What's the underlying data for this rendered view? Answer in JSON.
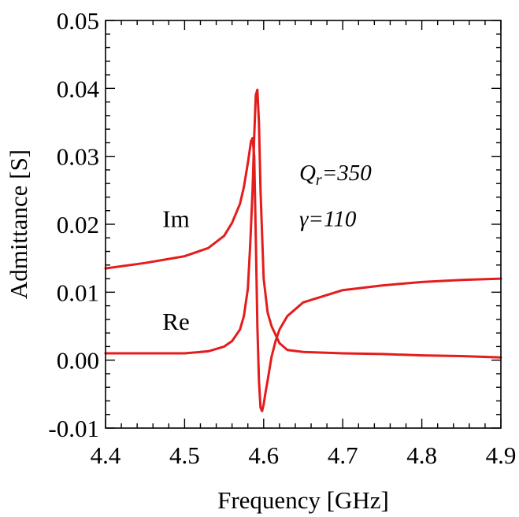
{
  "chart_data": {
    "type": "line",
    "xlabel": "Frequency [GHz]",
    "ylabel": "Admittance [S]",
    "xlim": [
      4.4,
      4.9
    ],
    "ylim": [
      -0.01,
      0.05
    ],
    "xticks": [
      "4.4",
      "4.5",
      "4.6",
      "4.7",
      "4.8",
      "4.9"
    ],
    "yticks": [
      "-0.01",
      "0.00",
      "0.01",
      "0.02",
      "0.03",
      "0.04",
      "0.05"
    ],
    "grid": false,
    "line_color": "#e41c1c",
    "series": [
      {
        "name": "Im",
        "label": "Im",
        "x": [
          4.4,
          4.45,
          4.5,
          4.53,
          4.55,
          4.56,
          4.57,
          4.575,
          4.58,
          4.584,
          4.586,
          4.588,
          4.59,
          4.592,
          4.594,
          4.596,
          4.598,
          4.6,
          4.602,
          4.605,
          4.61,
          4.615,
          4.62,
          4.63,
          4.65,
          4.7,
          4.75,
          4.8,
          4.85,
          4.9
        ],
        "y": [
          0.0135,
          0.0143,
          0.0153,
          0.0165,
          0.0183,
          0.0202,
          0.023,
          0.0255,
          0.029,
          0.0322,
          0.0327,
          0.03,
          0.018,
          0.005,
          -0.003,
          -0.007,
          -0.0075,
          -0.0065,
          -0.005,
          -0.003,
          0.0005,
          0.0028,
          0.0045,
          0.0065,
          0.0085,
          0.0103,
          0.011,
          0.0115,
          0.0118,
          0.012
        ]
      },
      {
        "name": "Re",
        "label": "Re",
        "x": [
          4.4,
          4.45,
          4.5,
          4.53,
          4.55,
          4.56,
          4.57,
          4.575,
          4.58,
          4.583,
          4.586,
          4.588,
          4.59,
          4.592,
          4.594,
          4.596,
          4.6,
          4.605,
          4.61,
          4.62,
          4.63,
          4.65,
          4.7,
          4.75,
          4.8,
          4.85,
          4.9
        ],
        "y": [
          0.001,
          0.001,
          0.001,
          0.0013,
          0.002,
          0.0028,
          0.0045,
          0.0065,
          0.0105,
          0.017,
          0.025,
          0.033,
          0.039,
          0.0398,
          0.035,
          0.025,
          0.012,
          0.007,
          0.005,
          0.0025,
          0.0015,
          0.0012,
          0.001,
          0.0009,
          0.0007,
          0.0006,
          0.0004
        ]
      }
    ],
    "annotations": [
      {
        "main": "Q",
        "sub": "r",
        "text": "=350",
        "x": 4.645,
        "y": 0.0265
      },
      {
        "main": "γ",
        "sub": "",
        "text": "=110",
        "x": 4.645,
        "y": 0.0197
      }
    ],
    "series_label_positions": {
      "Im": {
        "x": 4.472,
        "y": 0.0196
      },
      "Re": {
        "x": 4.472,
        "y": 0.0045
      }
    }
  }
}
